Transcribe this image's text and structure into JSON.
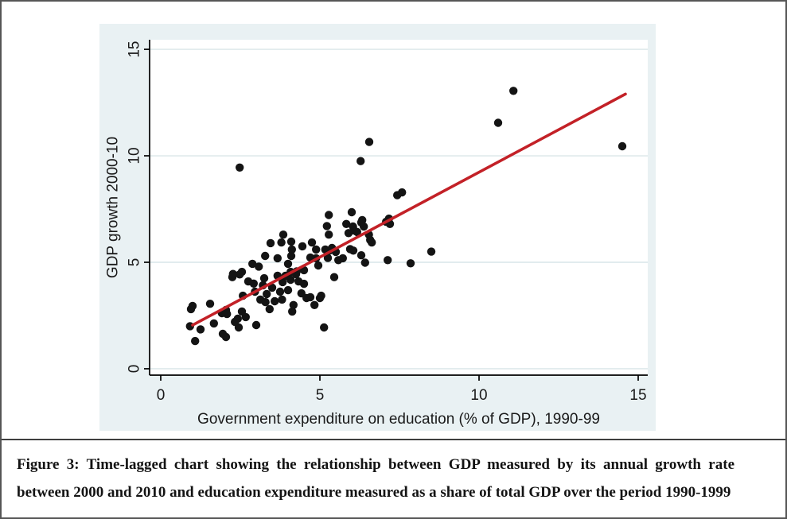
{
  "figure": {
    "caption_line1": "Figure 3: Time-lagged chart showing the relationship between GDP measured by its annual growth rate",
    "caption_line2": "between 2000 and 2010 and education expenditure measured as a share of total GDP over the period 1990-1999"
  },
  "chart_data": {
    "type": "scatter",
    "title": "",
    "xlabel": "Government expenditure on education (% of GDP), 1990-99",
    "ylabel": "GDP growth 2000-10",
    "xlim": [
      -0.35,
      15.3
    ],
    "ylim": [
      -0.3,
      15.45
    ],
    "xticks": [
      0,
      5,
      10,
      15
    ],
    "yticks": [
      0,
      5,
      10,
      15
    ],
    "grid": "horizontal-only",
    "legend_position": "none",
    "colors": {
      "point": "#141414",
      "fit_line": "#c32127",
      "plot_bg": "#ffffff",
      "chart_bg": "#e9f1f3",
      "gridline": "#d9e5e8",
      "axis": "#000000",
      "text": "#1a1a1a"
    },
    "fit_line": {
      "x_start": 1.0,
      "y_start": 2.05,
      "x_end": 14.6,
      "y_end": 12.9
    },
    "points": [
      [
        0.92,
        2.0
      ],
      [
        0.95,
        2.8
      ],
      [
        1.08,
        1.3
      ],
      [
        1.25,
        1.85
      ],
      [
        1.0,
        2.95
      ],
      [
        1.55,
        3.05
      ],
      [
        1.67,
        2.13
      ],
      [
        1.95,
        1.64
      ],
      [
        2.05,
        1.49
      ],
      [
        2.05,
        2.76
      ],
      [
        2.08,
        2.57
      ],
      [
        1.92,
        2.61
      ],
      [
        2.25,
        4.3
      ],
      [
        2.27,
        4.45
      ],
      [
        2.33,
        2.2
      ],
      [
        2.42,
        2.35
      ],
      [
        2.45,
        1.94
      ],
      [
        2.48,
        4.43
      ],
      [
        2.55,
        4.55
      ],
      [
        2.55,
        2.69
      ],
      [
        2.58,
        3.43
      ],
      [
        2.67,
        2.43
      ],
      [
        2.75,
        4.1
      ],
      [
        2.88,
        4.93
      ],
      [
        2.92,
        4.0
      ],
      [
        2.96,
        3.62
      ],
      [
        3.0,
        2.05
      ],
      [
        3.08,
        4.8
      ],
      [
        3.13,
        3.25
      ],
      [
        3.21,
        3.92
      ],
      [
        3.25,
        4.25
      ],
      [
        3.28,
        5.3
      ],
      [
        3.29,
        3.13
      ],
      [
        3.33,
        3.51
      ],
      [
        3.42,
        2.8
      ],
      [
        3.45,
        5.9
      ],
      [
        3.5,
        3.81
      ],
      [
        3.58,
        3.17
      ],
      [
        3.67,
        4.37
      ],
      [
        3.67,
        5.19
      ],
      [
        3.75,
        3.62
      ],
      [
        3.79,
        5.93
      ],
      [
        3.81,
        3.25
      ],
      [
        3.83,
        4.07
      ],
      [
        3.85,
        6.3
      ],
      [
        3.92,
        4.37
      ],
      [
        4.0,
        3.69
      ],
      [
        4.0,
        4.93
      ],
      [
        4.08,
        4.18
      ],
      [
        4.08,
        4.55
      ],
      [
        4.1,
        5.97
      ],
      [
        4.1,
        5.3
      ],
      [
        4.12,
        5.6
      ],
      [
        4.13,
        2.69
      ],
      [
        4.17,
        2.99
      ],
      [
        4.25,
        4.44
      ],
      [
        4.27,
        4.57
      ],
      [
        4.33,
        4.1
      ],
      [
        4.42,
        3.54
      ],
      [
        4.45,
        5.75
      ],
      [
        4.5,
        3.99
      ],
      [
        4.5,
        4.63
      ],
      [
        4.58,
        3.32
      ],
      [
        4.7,
        3.36
      ],
      [
        4.7,
        5.22
      ],
      [
        4.75,
        5.93
      ],
      [
        4.83,
        2.99
      ],
      [
        4.88,
        5.6
      ],
      [
        4.88,
        5.19
      ],
      [
        4.95,
        4.85
      ],
      [
        5.0,
        3.32
      ],
      [
        5.04,
        3.43
      ],
      [
        5.13,
        1.94
      ],
      [
        5.17,
        5.6
      ],
      [
        5.22,
        6.7
      ],
      [
        5.25,
        5.2
      ],
      [
        5.28,
        6.3
      ],
      [
        5.28,
        7.22
      ],
      [
        5.3,
        5.55
      ],
      [
        5.38,
        5.67
      ],
      [
        5.45,
        4.3
      ],
      [
        5.5,
        5.49
      ],
      [
        5.58,
        5.1
      ],
      [
        5.72,
        5.19
      ],
      [
        5.83,
        6.8
      ],
      [
        5.9,
        6.37
      ],
      [
        5.95,
        5.62
      ],
      [
        6.0,
        7.35
      ],
      [
        6.05,
        5.55
      ],
      [
        6.04,
        6.68
      ],
      [
        6.08,
        6.49
      ],
      [
        6.17,
        6.42
      ],
      [
        6.28,
        9.75
      ],
      [
        6.3,
        5.33
      ],
      [
        6.3,
        6.87
      ],
      [
        6.33,
        6.98
      ],
      [
        6.38,
        6.68
      ],
      [
        6.42,
        4.98
      ],
      [
        6.54,
        6.3
      ],
      [
        6.55,
        10.65
      ],
      [
        6.58,
        6.05
      ],
      [
        6.63,
        5.93
      ],
      [
        7.08,
        6.9
      ],
      [
        7.17,
        7.05
      ],
      [
        7.2,
        6.8
      ],
      [
        7.13,
        5.1
      ],
      [
        7.43,
        8.15
      ],
      [
        7.58,
        8.28
      ],
      [
        7.85,
        4.95
      ],
      [
        8.5,
        5.5
      ],
      [
        2.48,
        9.45
      ],
      [
        10.6,
        11.55
      ],
      [
        11.08,
        13.05
      ],
      [
        14.5,
        10.45
      ]
    ]
  }
}
